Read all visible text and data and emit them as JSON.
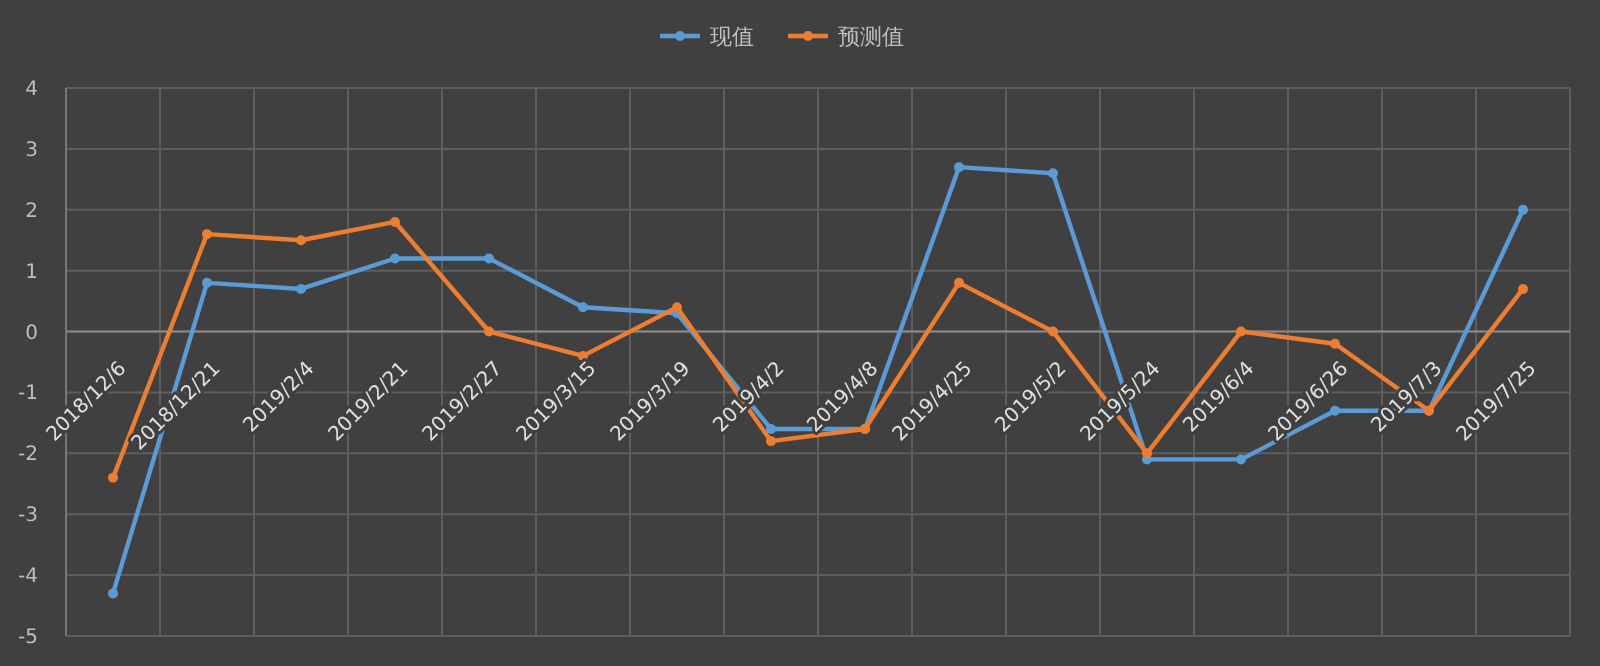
{
  "chart_data": {
    "type": "line",
    "categories": [
      "2018/12/6",
      "2018/12/21",
      "2019/2/4",
      "2019/2/21",
      "2019/2/27",
      "2019/3/15",
      "2019/3/19",
      "2019/4/2",
      "2019/4/8",
      "2019/4/25",
      "2019/5/2",
      "2019/5/24",
      "2019/6/4",
      "2019/6/26",
      "2019/7/3",
      "2019/7/25"
    ],
    "series": [
      {
        "name": "现值",
        "color": "#5b9bd5",
        "values": [
          -4.3,
          0.8,
          0.7,
          1.2,
          1.2,
          0.4,
          0.3,
          -1.6,
          -1.6,
          2.7,
          2.6,
          -2.1,
          -2.1,
          -1.3,
          -1.3,
          2.0
        ]
      },
      {
        "name": "预测值",
        "color": "#ed7d31",
        "values": [
          -2.4,
          1.6,
          1.5,
          1.8,
          0.0,
          -0.4,
          0.4,
          -1.8,
          -1.6,
          0.8,
          0.0,
          -2.0,
          0.0,
          -0.2,
          -1.3,
          0.7
        ]
      }
    ],
    "ylim": [
      -5,
      4
    ],
    "yticks": [
      -5,
      -4,
      -3,
      -2,
      -1,
      0,
      1,
      2,
      3,
      4
    ],
    "grid": true,
    "legend": "top",
    "marker": "circle",
    "line_style": "solid"
  }
}
